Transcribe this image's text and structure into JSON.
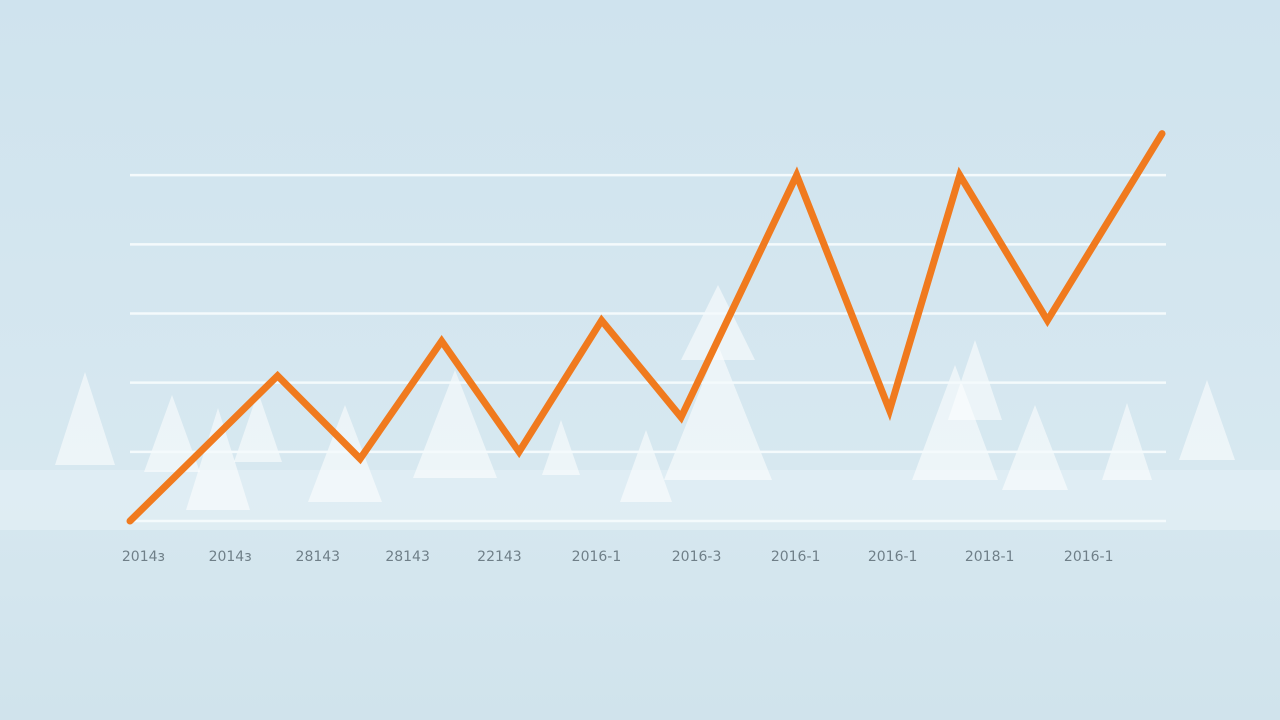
{
  "chart_data": {
    "type": "line",
    "x": [
      0,
      14.3,
      22.3,
      30.2,
      37.7,
      45.7,
      53.4,
      64.6,
      73.6,
      80.4,
      88.9,
      100
    ],
    "series": [
      {
        "color": "#f07a1e",
        "values": [
          0,
          2.1,
          0.9,
          2.6,
          1.0,
          2.9,
          1.5,
          5.0,
          1.6,
          5.0,
          2.9,
          5.6
        ]
      }
    ],
    "xlim": [
      0,
      100
    ],
    "xticks": [
      {
        "value": 1.3,
        "label": "2014з"
      },
      {
        "value": 9.7,
        "label": "2014з"
      },
      {
        "value": 18.2,
        "label": "28143"
      },
      {
        "value": 26.9,
        "label": "28143"
      },
      {
        "value": 35.8,
        "label": "22143"
      },
      {
        "value": 45.2,
        "label": "2016-1"
      },
      {
        "value": 54.9,
        "label": "2016-3"
      },
      {
        "value": 64.5,
        "label": "2016-1"
      },
      {
        "value": 73.9,
        "label": "2016-1"
      },
      {
        "value": 83.3,
        "label": "2018-1"
      },
      {
        "value": 92.9,
        "label": "2016-1"
      }
    ],
    "ylim": [
      0,
      6
    ],
    "yticks": [
      0,
      1,
      2,
      3,
      4,
      5
    ],
    "grid": true
  }
}
